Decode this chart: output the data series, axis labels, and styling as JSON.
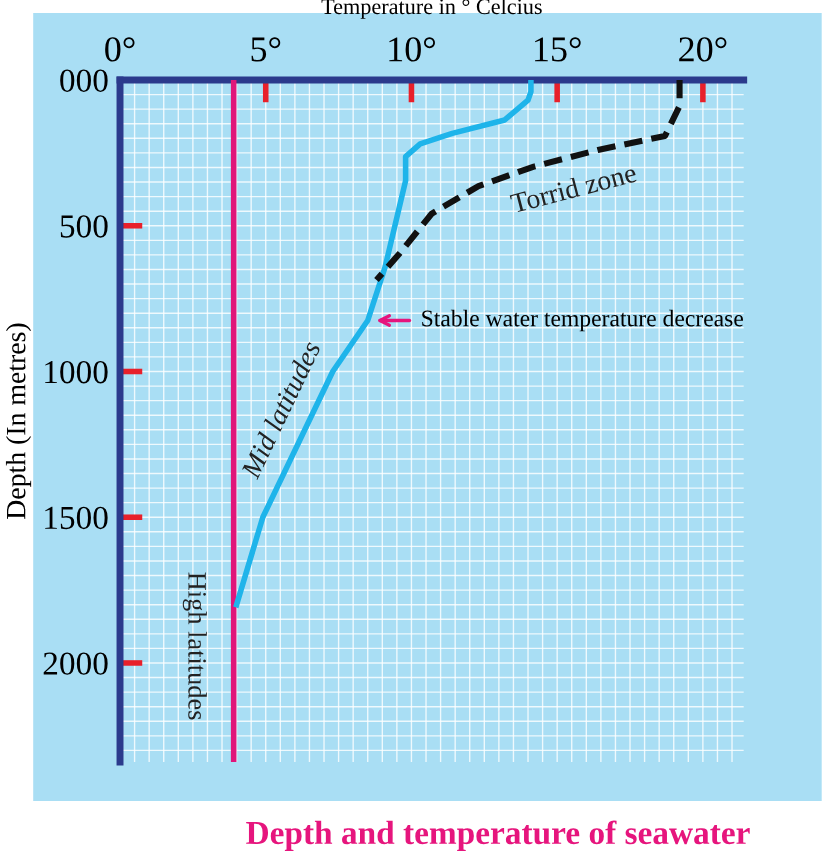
{
  "chart_data": {
    "type": "line",
    "title": "Depth and temperature of seawater",
    "xlabel": "Temperature in ° Celcius",
    "ylabel": "Depth (In metres)",
    "xlim": [
      0,
      21.4
    ],
    "ylim": [
      2340,
      0
    ],
    "xticks": [
      {
        "value": 0,
        "label": "0°"
      },
      {
        "value": 5,
        "label": "5°"
      },
      {
        "value": 10,
        "label": "10°"
      },
      {
        "value": 15,
        "label": "15°"
      },
      {
        "value": 20,
        "label": "20°"
      }
    ],
    "yticks": [
      {
        "value": 0,
        "label": "000"
      },
      500,
      1000,
      1500,
      2000
    ],
    "grid": true,
    "series": [
      {
        "name": "High latitudes",
        "color": "#e0157a",
        "x": [
          3.9,
          3.9
        ],
        "values": [
          0,
          2340
        ]
      },
      {
        "name": "Mid latitudes",
        "color": "#1eb4ea",
        "x": [
          14.1,
          14.1,
          14.0,
          13.2,
          11.4,
          10.3,
          9.8,
          9.8,
          9.1,
          8.5,
          7.3,
          4.9,
          4.0
        ],
        "values": [
          0,
          40,
          69,
          137,
          183,
          219,
          263,
          345,
          640,
          825,
          1000,
          1500,
          1800
        ]
      },
      {
        "name": "Torrid zone",
        "color": "#111111",
        "line_style": "dashed",
        "x": [
          19.2,
          19.2,
          18.7,
          16.4,
          14.2,
          12.3,
          10.7,
          9.6,
          8.8
        ],
        "values": [
          0,
          89,
          192,
          240,
          297,
          364,
          458,
          594,
          686
        ]
      }
    ],
    "annotations": [
      {
        "text": "Stable water temperature decrease",
        "x": 8.6,
        "y": 825
      }
    ]
  }
}
